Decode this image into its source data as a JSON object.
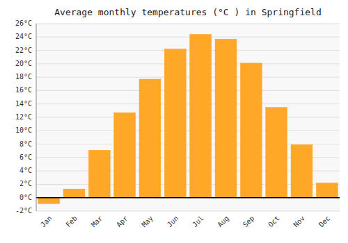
{
  "chart_data": {
    "type": "bar",
    "title": "Average monthly temperatures (°C ) in Springfield",
    "categories": [
      "Jan",
      "Feb",
      "Mar",
      "Apr",
      "May",
      "Jun",
      "Jul",
      "Aug",
      "Sep",
      "Oct",
      "Nov",
      "Dec"
    ],
    "values": [
      -0.9,
      1.3,
      7.1,
      12.7,
      17.7,
      22.2,
      24.4,
      23.7,
      20.1,
      13.5,
      7.9,
      2.2
    ],
    "color": "#FFA726",
    "ylim": [
      -2,
      26
    ],
    "yticks": [
      {
        "value": -2,
        "label": "-2°C"
      },
      {
        "value": 0,
        "label": "0°C"
      },
      {
        "value": 2,
        "label": "2°C"
      },
      {
        "value": 4,
        "label": "4°C"
      },
      {
        "value": 6,
        "label": "6°C"
      },
      {
        "value": 8,
        "label": "8°C"
      },
      {
        "value": 10,
        "label": "10°C"
      },
      {
        "value": 12,
        "label": "12°C"
      },
      {
        "value": 14,
        "label": "14°C"
      },
      {
        "value": 16,
        "label": "16°C"
      },
      {
        "value": 18,
        "label": "18°C"
      },
      {
        "value": 20,
        "label": "20°C"
      },
      {
        "value": 22,
        "label": "22°C"
      },
      {
        "value": 24,
        "label": "24°C"
      },
      {
        "value": 26,
        "label": "26°C"
      }
    ],
    "grid": true
  }
}
